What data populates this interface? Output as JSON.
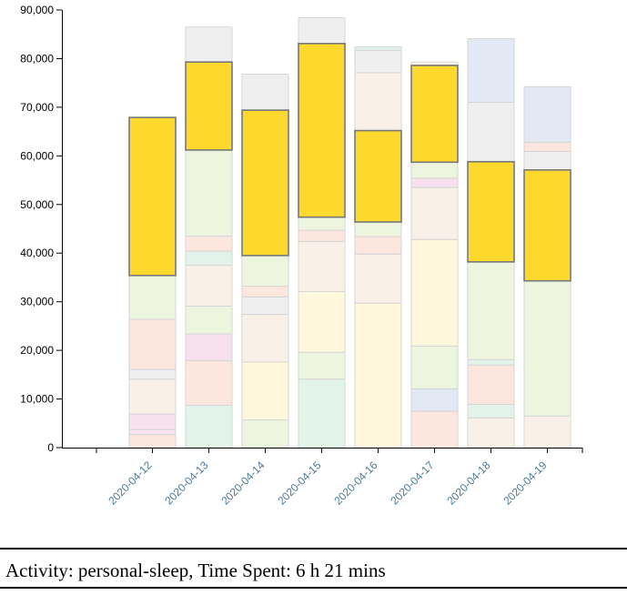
{
  "chart_data": {
    "type": "bar",
    "stacked": true,
    "categories": [
      "2020-04-12",
      "2020-04-13",
      "2020-04-14",
      "2020-04-15",
      "2020-04-16",
      "2020-04-17",
      "2020-04-18",
      "2020-04-19"
    ],
    "ylim": [
      0,
      90000
    ],
    "yticks": [
      0,
      10000,
      20000,
      30000,
      40000,
      50000,
      60000,
      70000,
      80000,
      90000
    ],
    "ytick_labels": [
      "0",
      "10,000",
      "20,000",
      "30,000",
      "40,000",
      "50,000",
      "60,000",
      "70,000",
      "80,000",
      "90,000"
    ],
    "highlight_color": "#fdd82d",
    "stacks": [
      [
        {
          "value": 2700,
          "color": "#fde6dd"
        },
        {
          "value": 1000,
          "color": "#f8e4f1"
        },
        {
          "value": 3200,
          "color": "#f7e1f0"
        },
        {
          "value": 7200,
          "color": "#f9f1e7"
        },
        {
          "value": 2000,
          "color": "#efefef"
        },
        {
          "value": 10300,
          "color": "#fde6dd"
        },
        {
          "value": 9000,
          "color": "#eef5de"
        },
        {
          "value": 32500,
          "color": "#fdd82d",
          "highlight": true
        }
      ],
      [
        {
          "value": 8700,
          "color": "#e2f3ea"
        },
        {
          "value": 9200,
          "color": "#fde6dd"
        },
        {
          "value": 5500,
          "color": "#f7e1f0"
        },
        {
          "value": 5700,
          "color": "#eef5de"
        },
        {
          "value": 8400,
          "color": "#f9f1e7"
        },
        {
          "value": 2900,
          "color": "#e2f3ea"
        },
        {
          "value": 3100,
          "color": "#fde6dd"
        },
        {
          "value": 17700,
          "color": "#eef5de"
        },
        {
          "value": 18100,
          "color": "#fdd82d",
          "highlight": true
        },
        {
          "value": 7200,
          "color": "#efefef"
        }
      ],
      [
        {
          "value": 5700,
          "color": "#eef5de"
        },
        {
          "value": 11900,
          "color": "#fff8dc"
        },
        {
          "value": 9800,
          "color": "#f9f1e7"
        },
        {
          "value": 3600,
          "color": "#efefef"
        },
        {
          "value": 2200,
          "color": "#fde6dd"
        },
        {
          "value": 6300,
          "color": "#eef5de"
        },
        {
          "value": 29900,
          "color": "#fdd82d",
          "highlight": true
        },
        {
          "value": 7400,
          "color": "#efefef"
        }
      ],
      [
        {
          "value": 14100,
          "color": "#e2f3ea"
        },
        {
          "value": 5500,
          "color": "#eef5de"
        },
        {
          "value": 12500,
          "color": "#fff8dc"
        },
        {
          "value": 10300,
          "color": "#f9f1e7"
        },
        {
          "value": 2300,
          "color": "#fde6dd"
        },
        {
          "value": 2700,
          "color": "#eef5de"
        },
        {
          "value": 35700,
          "color": "#fdd82d",
          "highlight": true
        },
        {
          "value": 5300,
          "color": "#efefef"
        }
      ],
      [
        {
          "value": 29700,
          "color": "#fff8dc"
        },
        {
          "value": 10100,
          "color": "#f9f1e7"
        },
        {
          "value": 3600,
          "color": "#fde6dd"
        },
        {
          "value": 3000,
          "color": "#eef5de"
        },
        {
          "value": 18800,
          "color": "#fdd82d",
          "highlight": true
        },
        {
          "value": 11900,
          "color": "#f9f1e7"
        },
        {
          "value": 4600,
          "color": "#efefef"
        },
        {
          "value": 700,
          "color": "#e2f3ea"
        }
      ],
      [
        {
          "value": 7500,
          "color": "#fde6dd"
        },
        {
          "value": 4600,
          "color": "#e3e8f5"
        },
        {
          "value": 8800,
          "color": "#eef5de"
        },
        {
          "value": 21900,
          "color": "#fff8dc"
        },
        {
          "value": 10700,
          "color": "#f9f1e7"
        },
        {
          "value": 1900,
          "color": "#f7e1f0"
        },
        {
          "value": 3300,
          "color": "#eef5de"
        },
        {
          "value": 19900,
          "color": "#fdd82d",
          "highlight": true
        },
        {
          "value": 700,
          "color": "#f9f1e7"
        }
      ],
      [
        {
          "value": 6100,
          "color": "#f9f1e7"
        },
        {
          "value": 2800,
          "color": "#e2f3ea"
        },
        {
          "value": 8100,
          "color": "#fde6dd"
        },
        {
          "value": 1100,
          "color": "#e2f3ea"
        },
        {
          "value": 20100,
          "color": "#eef5de"
        },
        {
          "value": 20600,
          "color": "#fdd82d",
          "highlight": true
        },
        {
          "value": 12200,
          "color": "#efefef"
        },
        {
          "value": 13100,
          "color": "#e3e8f5"
        }
      ],
      [
        {
          "value": 6500,
          "color": "#f9f1e7"
        },
        {
          "value": 27800,
          "color": "#eef5de"
        },
        {
          "value": 22800,
          "color": "#fdd82d",
          "highlight": true
        },
        {
          "value": 3800,
          "color": "#efefef"
        },
        {
          "value": 1900,
          "color": "#fde6dd"
        },
        {
          "value": 11400,
          "color": "#e3e8f5"
        }
      ]
    ]
  },
  "status": {
    "text": "Activity: personal-sleep, Time Spent: 6 h 21 mins"
  }
}
